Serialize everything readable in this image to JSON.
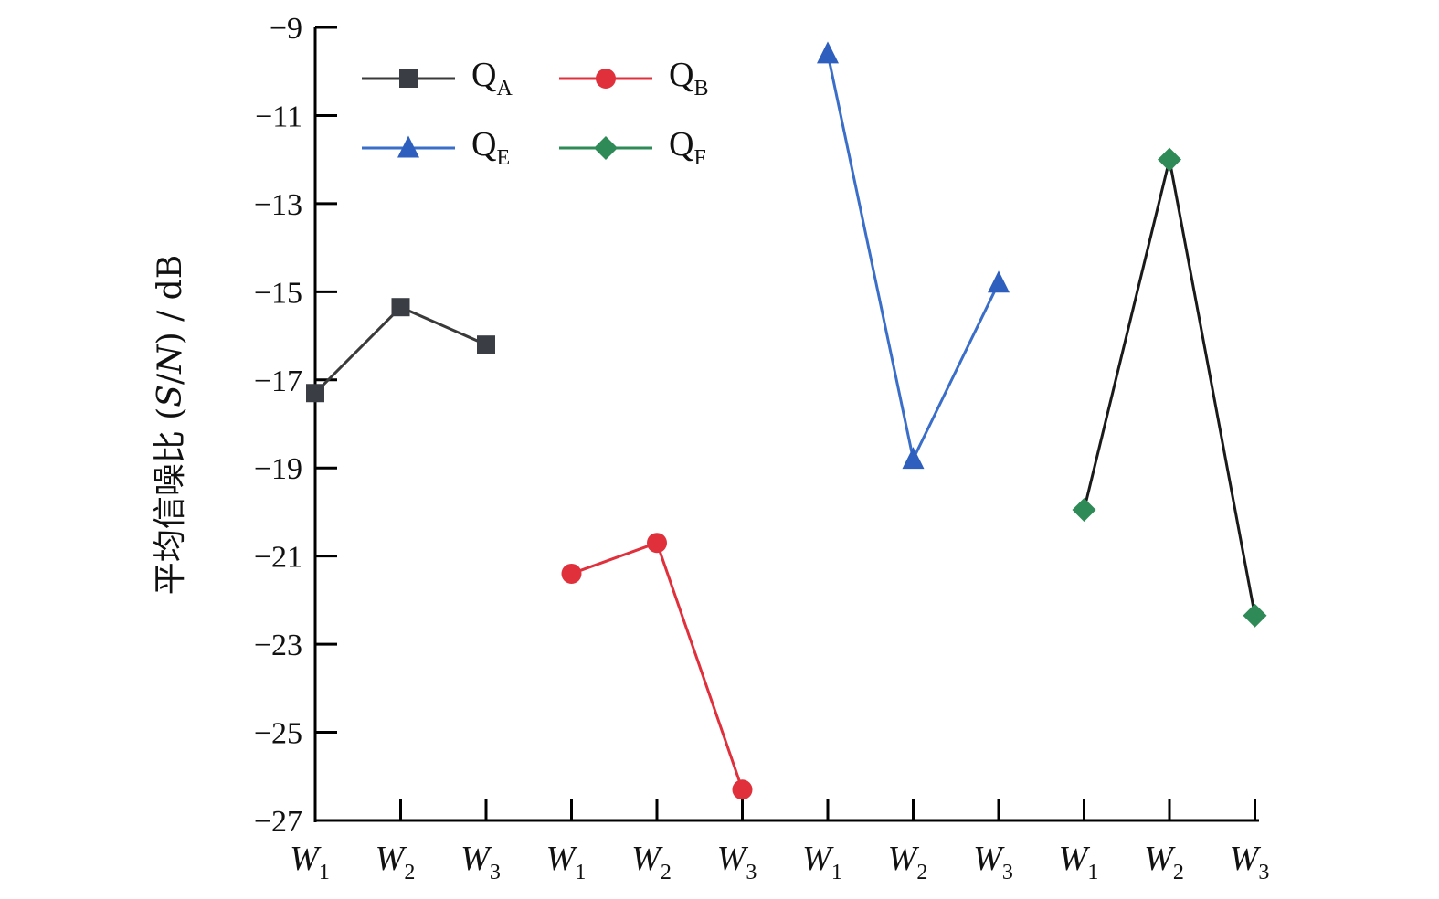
{
  "chart_data": {
    "type": "line",
    "ylabel": {
      "main": "平均信噪比 (",
      "italic_s": "S",
      "slash": "/",
      "italic_n": "N",
      "tail": ") / dB"
    },
    "ylim": [
      -27,
      -9
    ],
    "yticks": [
      -9,
      -11,
      -13,
      -15,
      -17,
      -19,
      -21,
      -23,
      -25,
      -27
    ],
    "ytick_labels": [
      "−9",
      "−11",
      "−13",
      "−15",
      "−17",
      "−19",
      "−21",
      "−23",
      "−25",
      "−27"
    ],
    "categories": [
      {
        "base": "W",
        "sub": "1"
      },
      {
        "base": "W",
        "sub": "2"
      },
      {
        "base": "W",
        "sub": "3"
      },
      {
        "base": "W",
        "sub": "1"
      },
      {
        "base": "W",
        "sub": "2"
      },
      {
        "base": "W",
        "sub": "3"
      },
      {
        "base": "W",
        "sub": "1"
      },
      {
        "base": "W",
        "sub": "2"
      },
      {
        "base": "W",
        "sub": "3"
      },
      {
        "base": "W",
        "sub": "1"
      },
      {
        "base": "W",
        "sub": "2"
      },
      {
        "base": "W",
        "sub": "3"
      }
    ],
    "legend_position": "top-left",
    "series": [
      {
        "name": "Q",
        "sub": "A",
        "marker": "square",
        "color": "#3a3a3a",
        "marker_color": "#3a3d44",
        "x": [
          0,
          1,
          2
        ],
        "values": [
          -17.3,
          -15.35,
          -16.2
        ]
      },
      {
        "name": "Q",
        "sub": "B",
        "marker": "circle",
        "color": "#e0303c",
        "marker_color": "#e0303c",
        "x": [
          3,
          4,
          5
        ],
        "values": [
          -21.4,
          -20.7,
          -26.3
        ]
      },
      {
        "name": "Q",
        "sub": "E",
        "marker": "triangle",
        "color": "#3a6ec8",
        "marker_color": "#2e5fbf",
        "x": [
          6,
          7,
          8
        ],
        "values": [
          -9.6,
          -18.8,
          -14.8
        ]
      },
      {
        "name": "Q",
        "sub": "F",
        "marker": "diamond",
        "color": "#1a1a1a",
        "legend_line_color": "#2e8b57",
        "marker_color": "#2e8b57",
        "x": [
          9,
          10,
          11
        ],
        "values": [
          -19.95,
          -12.0,
          -22.35
        ]
      }
    ]
  }
}
